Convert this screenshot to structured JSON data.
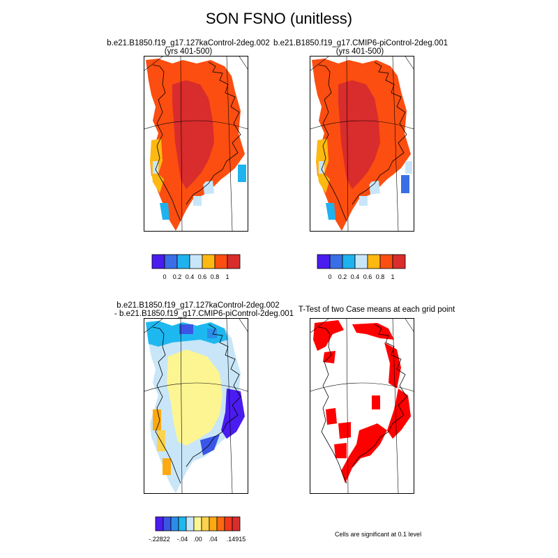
{
  "title": "SON FSNO (unitless)",
  "panels": [
    {
      "title_line1": "b.e21.B1850.f19_g17.127kaControl-2deg.002",
      "title_line2": "(yrs 401-500)"
    },
    {
      "title_line1": "b.e21.B1850.f19_g17.CMIP6-piControl-2deg.001",
      "title_line2": "(yrs 401-500)"
    },
    {
      "title_line1": "b.e21.B1850.f19_g17.127kaControl-2deg.002",
      "title_line2": "- b.e21.B1850.f19_g17.CMIP6-piControl-2deg.001"
    },
    {
      "title_line1": "T-Test of two Case means at each grid point",
      "title_line2": ""
    }
  ],
  "colorbars": {
    "abs": {
      "colors": [
        "#4a1cf0",
        "#3a6ee6",
        "#1eb2ee",
        "#c8e6f8",
        "#fdb812",
        "#fb4e10",
        "#d92c2c"
      ],
      "labels": [
        "0",
        "0.2",
        "0.4",
        "0.6",
        "0.8",
        "1"
      ]
    },
    "diff": {
      "colors": [
        "#4a1cf0",
        "#3a56e6",
        "#2a8ee8",
        "#1eb8f0",
        "#c8e6f8",
        "#fdf592",
        "#fdd24e",
        "#fdaa10",
        "#fb6a10",
        "#f2381c",
        "#d92c2c"
      ],
      "labels": [
        "-.22822",
        "-.04",
        ".00",
        ".04",
        ".14915"
      ]
    }
  },
  "significance_note": "Cells are significant at 0.1 level",
  "chart_data": [
    {
      "type": "heatmap",
      "title": "b.e21.B1850.f19_g17.127kaControl-2deg.002 (yrs 401-500)",
      "levels": [
        0,
        0.2,
        0.4,
        0.6,
        0.8,
        1
      ],
      "summary": {
        "interior": 1.0,
        "margins": 0.8,
        "southwest_coast": 0.6,
        "east_coast_edge": 0.4
      }
    },
    {
      "type": "heatmap",
      "title": "b.e21.B1850.f19_g17.CMIP6-piControl-2deg.001 (yrs 401-500)",
      "levels": [
        0,
        0.2,
        0.4,
        0.6,
        0.8,
        1
      ],
      "summary": {
        "interior": 1.0,
        "margins": 0.8,
        "southwest_coast": 0.6,
        "east_coast_edge": 0.2
      }
    },
    {
      "type": "heatmap",
      "title": "difference",
      "levels": [
        -0.22822,
        -0.04,
        0.0,
        0.04,
        0.14915
      ],
      "summary": {
        "interior": 0.0,
        "margins": -0.04,
        "east_coast": -0.2,
        "southwest_coast": 0.06
      }
    },
    {
      "type": "heatmap",
      "title": "T-Test of two Case means at each grid point",
      "levels": [
        0.1
      ],
      "summary": {
        "significant_regions": [
          "north coast",
          "east coast",
          "west coast",
          "south tip"
        ]
      }
    }
  ]
}
